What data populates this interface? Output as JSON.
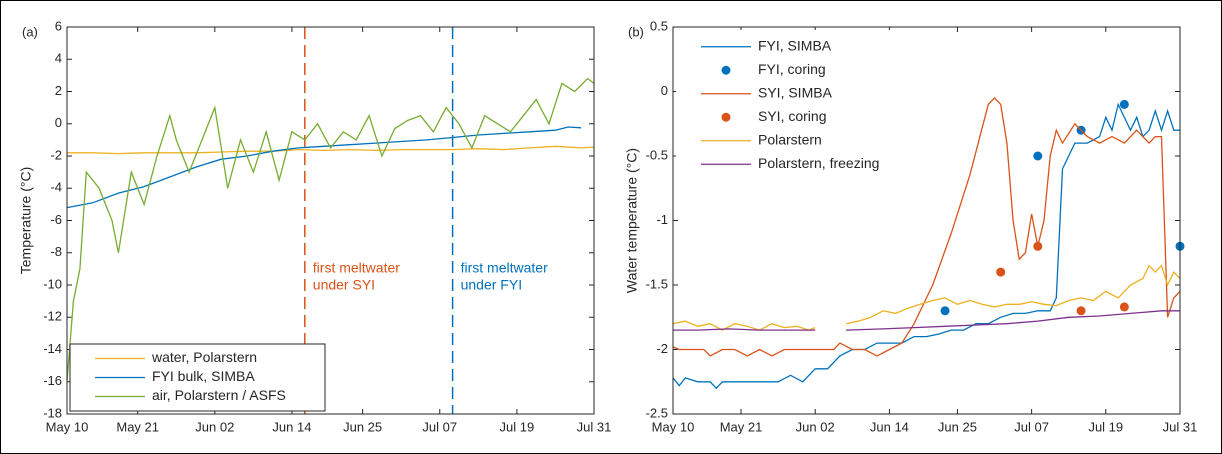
{
  "chart_data": [
    {
      "type": "line",
      "panel_label": "(a)",
      "ylabel": "Temperature (°C)",
      "xlim": [
        131,
        213
      ],
      "ylim": [
        -18,
        6
      ],
      "xticks": [
        {
          "value": 131,
          "label": "May 10"
        },
        {
          "value": 142,
          "label": "May 21"
        },
        {
          "value": 154,
          "label": "Jun 02"
        },
        {
          "value": 166,
          "label": "Jun 14"
        },
        {
          "value": 177,
          "label": "Jun 25"
        },
        {
          "value": 189,
          "label": "Jul 07"
        },
        {
          "value": 201,
          "label": "Jul 19"
        },
        {
          "value": 213,
          "label": "Jul 31"
        }
      ],
      "yticks": [
        -18,
        -16,
        -14,
        -12,
        -10,
        -8,
        -6,
        -4,
        -2,
        0,
        2,
        4,
        6
      ],
      "legend": "lower left",
      "series": [
        {
          "name": "water, Polarstern",
          "type": "line",
          "color": "#EDB120",
          "x": [
            131,
            135,
            139,
            143,
            147,
            151,
            155,
            159,
            163,
            167,
            171,
            175,
            179,
            183,
            187,
            191,
            195,
            199,
            203,
            207,
            211,
            213
          ],
          "values": [
            -1.8,
            -1.8,
            -1.85,
            -1.8,
            -1.8,
            -1.8,
            -1.75,
            -1.7,
            -1.7,
            -1.6,
            -1.65,
            -1.6,
            -1.65,
            -1.6,
            -1.6,
            -1.6,
            -1.55,
            -1.6,
            -1.5,
            -1.4,
            -1.5,
            -1.45
          ]
        },
        {
          "name": "FYI bulk, SIMBA",
          "type": "line",
          "color": "#0072BD",
          "x": [
            131,
            135,
            139,
            143,
            147,
            151,
            155,
            159,
            163,
            167,
            171,
            175,
            179,
            183,
            187,
            191,
            195,
            199,
            203,
            207,
            209,
            211
          ],
          "values": [
            -5.2,
            -4.9,
            -4.3,
            -3.9,
            -3.3,
            -2.7,
            -2.2,
            -2,
            -1.7,
            -1.5,
            -1.4,
            -1.3,
            -1.2,
            -1.1,
            -1,
            -0.85,
            -0.7,
            -0.6,
            -0.5,
            -0.4,
            -0.2,
            -0.25
          ]
        },
        {
          "name": "air, Polarstern / ASFS",
          "type": "line",
          "color": "#77AC30",
          "x": [
            131,
            132,
            133,
            134,
            136,
            138,
            139,
            141,
            143,
            145,
            147,
            148,
            150,
            152,
            154,
            156,
            158,
            160,
            162,
            164,
            166,
            168,
            170,
            172,
            174,
            176,
            178,
            180,
            182,
            184,
            186,
            188,
            190,
            192,
            194,
            196,
            198,
            200,
            202,
            204,
            206,
            208,
            210,
            212,
            213
          ],
          "values": [
            -16,
            -11,
            -9,
            -3,
            -4,
            -6,
            -8,
            -3,
            -5,
            -2,
            0.5,
            -1,
            -3,
            -1,
            1,
            -4,
            -1,
            -3,
            -0.5,
            -3.5,
            -0.5,
            -1,
            0,
            -1.5,
            -0.5,
            -1,
            0.5,
            -2,
            -0.3,
            0.2,
            0.5,
            -0.5,
            1,
            0,
            -1.5,
            0.5,
            0,
            -0.5,
            0.5,
            1.5,
            0,
            2.5,
            2,
            2.8,
            2.5
          ]
        }
      ],
      "events": [
        {
          "x": 168,
          "color": "#D95319",
          "label": [
            "first meltwater",
            "under SYI"
          ]
        },
        {
          "x": 191,
          "color": "#0072BD",
          "label": [
            "first meltwater",
            "under FYI"
          ]
        }
      ]
    },
    {
      "type": "line",
      "panel_label": "(b)",
      "ylabel": "Water temperature (°C)",
      "xlim": [
        131,
        213
      ],
      "ylim": [
        -2.5,
        0.5
      ],
      "xticks": [
        {
          "value": 131,
          "label": "May 10"
        },
        {
          "value": 142,
          "label": "May 21"
        },
        {
          "value": 154,
          "label": "Jun 02"
        },
        {
          "value": 166,
          "label": "Jun 14"
        },
        {
          "value": 177,
          "label": "Jun 25"
        },
        {
          "value": 189,
          "label": "Jul 07"
        },
        {
          "value": 201,
          "label": "Jul 19"
        },
        {
          "value": 213,
          "label": "Jul 31"
        }
      ],
      "yticks": [
        -2.5,
        -2,
        -1.5,
        -1,
        -0.5,
        0,
        0.5
      ],
      "legend": "upper left",
      "series": [
        {
          "name": "FYI, SIMBA",
          "type": "line",
          "color": "#0072BD",
          "x": [
            131,
            132,
            133,
            135,
            137,
            138,
            139,
            142,
            145,
            148,
            150,
            152,
            154,
            156,
            158,
            160,
            162,
            164,
            166,
            168,
            170,
            172,
            174,
            176,
            178,
            180,
            182,
            184,
            186,
            188,
            190,
            192,
            193,
            194,
            195,
            196,
            198,
            200,
            201,
            202,
            203,
            205,
            206,
            207,
            208,
            209,
            210,
            211,
            212,
            213
          ],
          "values": [
            -2.22,
            -2.28,
            -2.22,
            -2.25,
            -2.25,
            -2.3,
            -2.25,
            -2.25,
            -2.25,
            -2.25,
            -2.2,
            -2.25,
            -2.15,
            -2.15,
            -2.05,
            -2,
            -2,
            -1.95,
            -1.95,
            -1.95,
            -1.9,
            -1.9,
            -1.88,
            -1.85,
            -1.85,
            -1.8,
            -1.8,
            -1.75,
            -1.72,
            -1.72,
            -1.7,
            -1.7,
            -1.6,
            -0.6,
            -0.5,
            -0.4,
            -0.4,
            -0.35,
            -0.2,
            -0.3,
            -0.1,
            -0.3,
            -0.2,
            -0.35,
            -0.3,
            -0.15,
            -0.3,
            -0.15,
            -0.3,
            -0.3
          ]
        },
        {
          "name": "FYI, coring",
          "type": "scatter",
          "color": "#0072BD",
          "x": [
            175,
            190,
            197,
            204,
            213
          ],
          "values": [
            -1.7,
            -0.5,
            -0.3,
            -0.1,
            -1.2
          ]
        },
        {
          "name": "SYI, SIMBA",
          "type": "line",
          "color": "#D95319",
          "x": [
            131,
            132,
            134,
            136,
            137,
            139,
            141,
            143,
            145,
            147,
            149,
            151,
            153,
            155,
            157,
            158,
            160,
            162,
            164,
            166,
            168,
            170,
            173,
            176,
            179,
            182,
            183,
            184,
            185,
            186,
            187,
            188,
            189,
            190,
            191,
            192,
            193,
            194,
            196,
            198,
            200,
            202,
            204,
            206,
            208,
            209,
            210,
            211,
            212,
            213
          ],
          "values": [
            -1.98,
            -2,
            -2,
            -2,
            -2.05,
            -2,
            -2,
            -2.05,
            -2,
            -2.05,
            -2,
            -2,
            -2,
            -2,
            -2,
            -1.95,
            -2,
            -2,
            -2.05,
            -2,
            -1.95,
            -1.8,
            -1.5,
            -1.1,
            -0.65,
            -0.1,
            -0.05,
            -0.1,
            -0.4,
            -1,
            -1.3,
            -1.25,
            -0.95,
            -1.2,
            -1,
            -0.5,
            -0.3,
            -0.4,
            -0.25,
            -0.35,
            -0.4,
            -0.35,
            -0.4,
            -0.3,
            -0.4,
            -0.35,
            -0.35,
            -1.75,
            -1.6,
            -1.55
          ]
        },
        {
          "name": "SYI, coring",
          "type": "scatter",
          "color": "#D95319",
          "x": [
            184,
            190,
            197,
            204
          ],
          "values": [
            -1.4,
            -1.2,
            -1.7,
            -1.67
          ]
        },
        {
          "name": "Polarstern",
          "type": "line",
          "color": "#EDB120",
          "x": [
            131,
            133,
            135,
            137,
            139,
            141,
            143,
            145,
            147,
            149,
            151,
            153,
            154,
            155,
            159,
            161,
            163,
            165,
            167,
            169,
            171,
            173,
            175,
            177,
            179,
            181,
            183,
            185,
            187,
            189,
            191,
            193,
            195,
            197,
            199,
            201,
            203,
            205,
            207,
            208,
            209,
            210,
            211,
            212,
            213
          ],
          "values": [
            -1.8,
            -1.78,
            -1.82,
            -1.8,
            -1.85,
            -1.8,
            -1.82,
            -1.85,
            -1.8,
            -1.83,
            -1.82,
            -1.85,
            -1.83,
            null,
            -1.8,
            -1.78,
            -1.75,
            -1.7,
            -1.72,
            -1.68,
            -1.65,
            -1.62,
            -1.6,
            -1.65,
            -1.62,
            -1.65,
            -1.67,
            -1.65,
            -1.65,
            -1.63,
            -1.65,
            -1.66,
            -1.62,
            -1.6,
            -1.62,
            -1.55,
            -1.6,
            -1.5,
            -1.45,
            -1.35,
            -1.4,
            -1.35,
            -1.5,
            -1.4,
            -1.45
          ]
        },
        {
          "name": "Polarstern, freezing",
          "type": "line",
          "color": "#7E2F8E",
          "x": [
            131,
            135,
            140,
            145,
            150,
            154,
            155,
            159,
            165,
            170,
            175,
            180,
            185,
            190,
            195,
            200,
            205,
            210,
            213
          ],
          "values": [
            -1.85,
            -1.85,
            -1.84,
            -1.85,
            -1.85,
            -1.85,
            null,
            -1.85,
            -1.84,
            -1.83,
            -1.82,
            -1.81,
            -1.8,
            -1.78,
            -1.75,
            -1.74,
            -1.72,
            -1.7,
            -1.7
          ]
        }
      ]
    }
  ]
}
